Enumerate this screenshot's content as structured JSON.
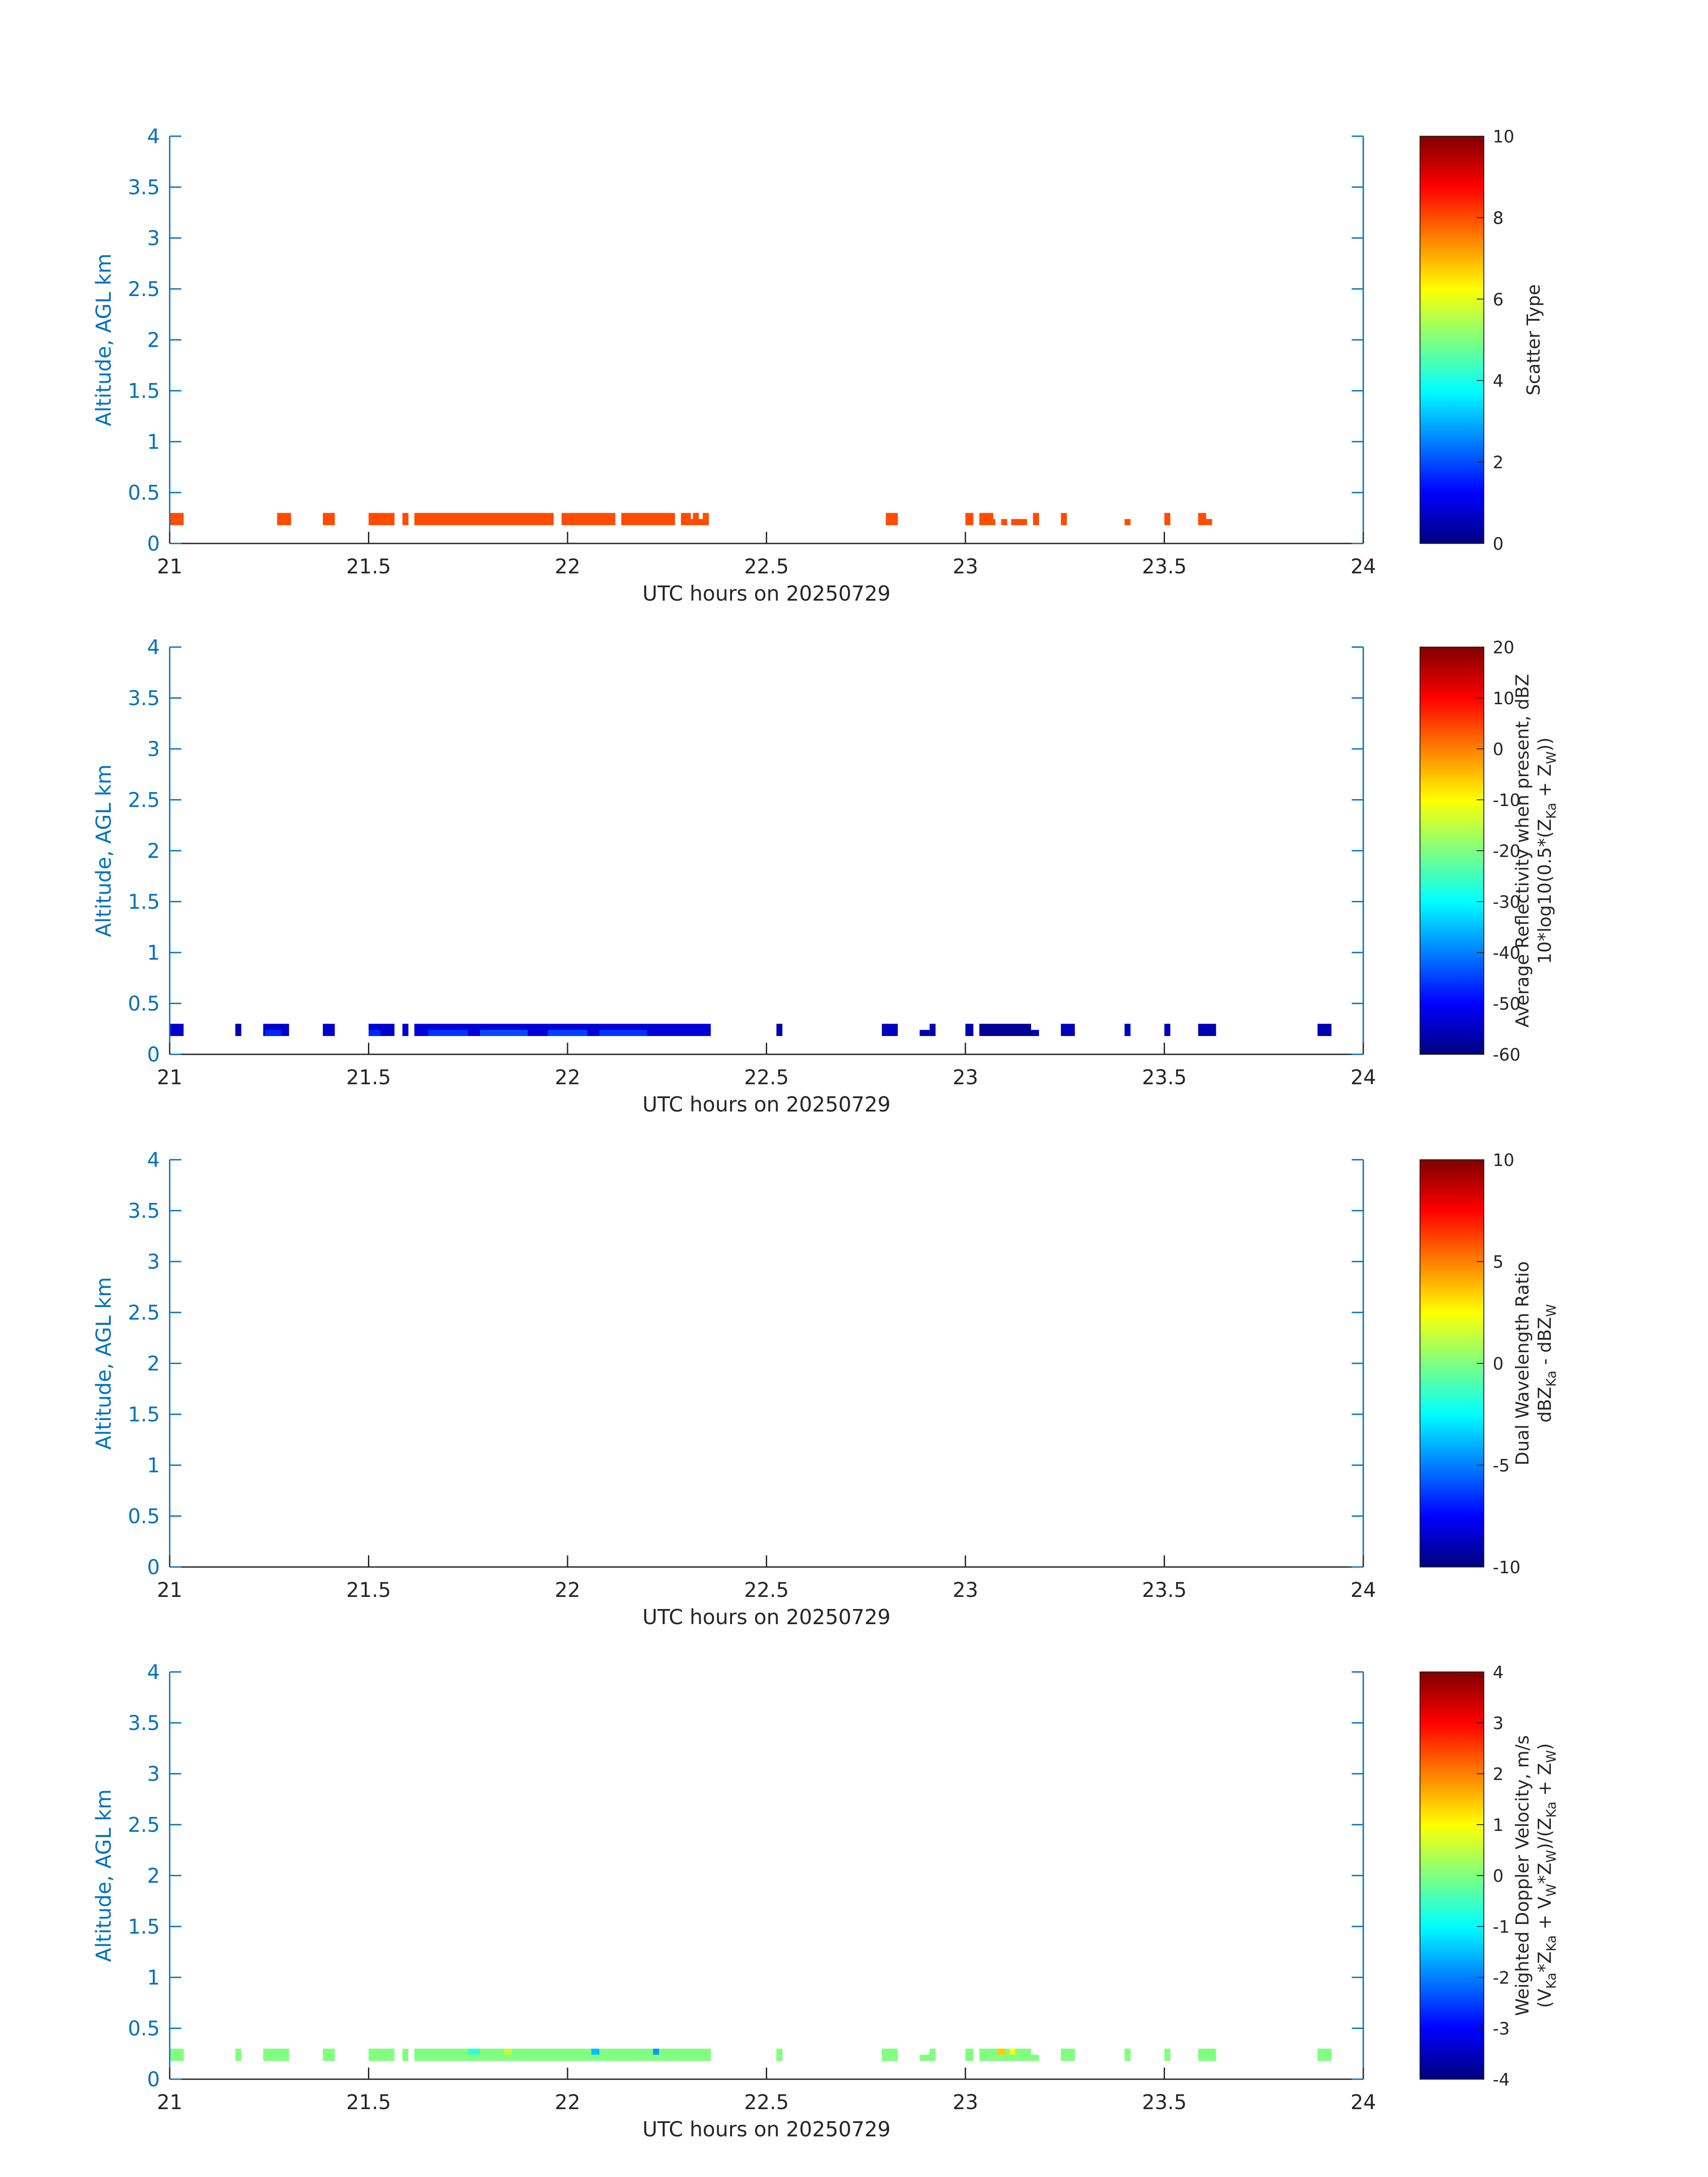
{
  "colors": {
    "axis_left": "#0072bd",
    "axis_bottom": "#262626",
    "cbar_text": "#262626"
  },
  "chart_data": [
    {
      "type": "heatmap",
      "xlabel": "UTC hours on 20250729",
      "ylabel": "Altitude, AGL km",
      "xlim": [
        21,
        24
      ],
      "ylim": [
        0,
        4
      ],
      "x_ticks": [
        "21",
        "21.5",
        "22",
        "22.5",
        "23",
        "23.5",
        "24"
      ],
      "y_ticks": [
        "0",
        "0.5",
        "1",
        "1.5",
        "2",
        "2.5",
        "3",
        "3.5",
        "4"
      ],
      "colorbar": {
        "label_lines": [
          "Scatter Type"
        ],
        "ticks": [
          "0",
          "2",
          "4",
          "6",
          "8",
          "10"
        ],
        "range": [
          0,
          10
        ]
      },
      "rows": [
        {
          "y_range": [
            0.18,
            0.3
          ],
          "segments": [
            [
              21.0,
              21.035,
              8
            ],
            [
              21.27,
              21.305,
              8
            ],
            [
              21.385,
              21.415,
              8
            ],
            [
              21.5,
              21.565,
              8
            ],
            [
              21.585,
              21.6,
              8
            ],
            [
              21.615,
              21.965,
              8
            ],
            [
              21.985,
              22.12,
              8
            ],
            [
              22.135,
              22.27,
              8
            ],
            [
              22.285,
              22.31,
              8
            ],
            [
              22.315,
              22.33,
              8
            ],
            [
              22.34,
              22.355,
              8
            ],
            [
              22.8,
              22.83,
              8
            ],
            [
              23.0,
              23.02,
              8
            ],
            [
              23.035,
              23.07,
              8
            ],
            [
              23.17,
              23.185,
              8
            ],
            [
              23.24,
              23.255,
              8
            ],
            [
              23.5,
              23.515,
              8
            ],
            [
              23.585,
              23.605,
              8
            ]
          ]
        },
        {
          "y_range": [
            0.18,
            0.24
          ],
          "segments": [
            [
              22.31,
              22.355,
              8
            ],
            [
              23.07,
              23.075,
              8
            ],
            [
              23.09,
              23.105,
              8
            ],
            [
              23.115,
              23.155,
              8
            ],
            [
              23.4,
              23.415,
              8
            ],
            [
              23.605,
              23.62,
              8
            ]
          ]
        }
      ]
    },
    {
      "type": "heatmap",
      "xlabel": "UTC hours on 20250729",
      "ylabel": "Altitude, AGL km",
      "xlim": [
        21,
        24
      ],
      "ylim": [
        0,
        4
      ],
      "x_ticks": [
        "21",
        "21.5",
        "22",
        "22.5",
        "23",
        "23.5",
        "24"
      ],
      "y_ticks": [
        "0",
        "0.5",
        "1",
        "1.5",
        "2",
        "2.5",
        "3",
        "3.5",
        "4"
      ],
      "colorbar": {
        "label_lines": [
          "Average Reflectivity when present, dBZ",
          "10*log10(0.5*(Z_{Ka} + Z_{W}))"
        ],
        "ticks": [
          "-60",
          "-50",
          "-40",
          "-30",
          "-20",
          "-10",
          "0",
          "10",
          "20"
        ],
        "range": [
          -60,
          20
        ]
      },
      "rows": [
        {
          "y_range": [
            0.18,
            0.3
          ],
          "segments": [
            [
              21.0,
              21.035,
              -54
            ],
            [
              21.165,
              21.18,
              -56
            ],
            [
              21.235,
              21.3,
              -54
            ],
            [
              21.385,
              21.415,
              -54
            ],
            [
              21.5,
              21.565,
              -54
            ],
            [
              21.585,
              21.6,
              -54
            ],
            [
              21.615,
              22.36,
              -53
            ],
            [
              22.525,
              22.54,
              -56
            ],
            [
              22.79,
              22.83,
              -55
            ],
            [
              22.91,
              22.925,
              -56
            ],
            [
              23.0,
              23.02,
              -56
            ],
            [
              23.035,
              23.165,
              -58
            ],
            [
              23.24,
              23.275,
              -55
            ],
            [
              23.4,
              23.415,
              -55
            ],
            [
              23.5,
              23.515,
              -55
            ],
            [
              23.585,
              23.63,
              -56
            ],
            [
              23.885,
              23.92,
              -56
            ]
          ]
        },
        {
          "y_range": [
            0.18,
            0.24
          ],
          "segments": [
            [
              23.165,
              23.185,
              -56
            ],
            [
              22.885,
              22.91,
              -56
            ]
          ]
        },
        {
          "y_range": [
            0.18,
            0.24
          ],
          "segments": [
            [
              21.65,
              21.75,
              -46
            ],
            [
              21.78,
              21.9,
              -44
            ],
            [
              21.95,
              22.05,
              -45
            ],
            [
              22.08,
              22.2,
              -46
            ],
            [
              21.24,
              21.28,
              -47
            ],
            [
              21.5,
              21.53,
              -47
            ]
          ]
        }
      ]
    },
    {
      "type": "heatmap",
      "xlabel": "UTC hours on 20250729",
      "ylabel": "Altitude, AGL km",
      "xlim": [
        21,
        24
      ],
      "ylim": [
        0,
        4
      ],
      "x_ticks": [
        "21",
        "21.5",
        "22",
        "22.5",
        "23",
        "23.5",
        "24"
      ],
      "y_ticks": [
        "0",
        "0.5",
        "1",
        "1.5",
        "2",
        "2.5",
        "3",
        "3.5",
        "4"
      ],
      "colorbar": {
        "label_lines": [
          "Dual Wavelength Ratio",
          "dBZ_{Ka} - dBZ_{W}"
        ],
        "ticks": [
          "-10",
          "-5",
          "0",
          "5",
          "10"
        ],
        "range": [
          -10,
          10
        ]
      },
      "rows": []
    },
    {
      "type": "heatmap",
      "xlabel": "UTC hours on 20250729",
      "ylabel": "Altitude, AGL km",
      "xlim": [
        21,
        24
      ],
      "ylim": [
        0,
        4
      ],
      "x_ticks": [
        "21",
        "21.5",
        "22",
        "22.5",
        "23",
        "23.5",
        "24"
      ],
      "y_ticks": [
        "0",
        "0.5",
        "1",
        "1.5",
        "2",
        "2.5",
        "3",
        "3.5",
        "4"
      ],
      "colorbar": {
        "label_lines": [
          "Weighted Doppler Velocity, m/s",
          "(V_{Ka}*Z_{Ka} + V_{W}*Z_{W})/(Z_{Ka} + Z_{W})"
        ],
        "ticks": [
          "-4",
          "-3",
          "-2",
          "-1",
          "0",
          "1",
          "2",
          "3",
          "4"
        ],
        "range": [
          -4,
          4
        ]
      },
      "rows": [
        {
          "y_range": [
            0.18,
            0.3
          ],
          "segments": [
            [
              21.0,
              21.035,
              0.0
            ],
            [
              21.165,
              21.18,
              0.0
            ],
            [
              21.235,
              21.3,
              0.0
            ],
            [
              21.385,
              21.415,
              0.0
            ],
            [
              21.5,
              21.565,
              0.0
            ],
            [
              21.585,
              21.6,
              0.0
            ],
            [
              21.615,
              22.36,
              0.0
            ],
            [
              22.525,
              22.54,
              0.0
            ],
            [
              22.79,
              22.83,
              0.0
            ],
            [
              22.91,
              22.925,
              0.0
            ],
            [
              23.0,
              23.02,
              0.0
            ],
            [
              23.035,
              23.165,
              0.0
            ],
            [
              23.24,
              23.275,
              0.0
            ],
            [
              23.4,
              23.415,
              0.0
            ],
            [
              23.5,
              23.515,
              0.0
            ],
            [
              23.585,
              23.63,
              0.0
            ],
            [
              23.885,
              23.92,
              0.0
            ]
          ]
        },
        {
          "y_range": [
            0.18,
            0.24
          ],
          "segments": [
            [
              23.165,
              23.185,
              0.0
            ],
            [
              22.885,
              22.91,
              0.0
            ]
          ]
        },
        {
          "y_range": [
            0.24,
            0.3
          ],
          "segments": [
            [
              21.75,
              21.78,
              -0.6
            ],
            [
              22.06,
              22.08,
              -1.5
            ],
            [
              22.215,
              22.23,
              -1.8
            ],
            [
              23.08,
              23.1,
              1.4
            ],
            [
              23.11,
              23.125,
              1.0
            ],
            [
              21.84,
              21.86,
              0.5
            ]
          ]
        }
      ]
    }
  ]
}
